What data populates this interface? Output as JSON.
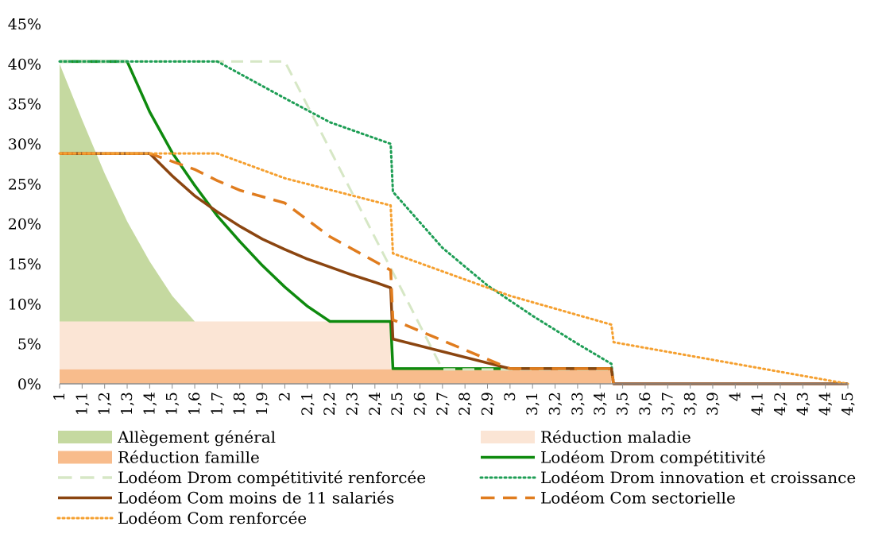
{
  "chart_data": {
    "type": "line",
    "title": "",
    "xlabel": "",
    "ylabel": "",
    "xlim": [
      1,
      4.5
    ],
    "ylim": [
      0,
      45
    ],
    "x_ticks": [
      "1",
      "1,1",
      "1,2",
      "1,3",
      "1,4",
      "1,5",
      "1,6",
      "1,7",
      "1,8",
      "1,9",
      "2",
      "2,1",
      "2,2",
      "2,3",
      "2,4",
      "2,5",
      "2,6",
      "2,7",
      "2,8",
      "2,9",
      "3",
      "3,1",
      "3,2",
      "3,3",
      "3,4",
      "3,5",
      "3,6",
      "3,7",
      "3,8",
      "3,9",
      "4",
      "4,1",
      "4,2",
      "4,3",
      "4,4",
      "4,5"
    ],
    "y_ticks": [
      "0%",
      "5%",
      "10%",
      "15%",
      "20%",
      "25%",
      "30%",
      "35%",
      "40%",
      "45%"
    ],
    "areas": [
      {
        "name": "Allègement général",
        "color": "#c5d9a0",
        "points": [
          [
            1,
            40
          ],
          [
            1.1,
            33
          ],
          [
            1.2,
            26.3
          ],
          [
            1.3,
            20.3
          ],
          [
            1.4,
            15.3
          ],
          [
            1.5,
            11
          ],
          [
            1.6,
            7.8
          ]
        ]
      },
      {
        "name": "Réduction maladie",
        "color": "#fbe5d5",
        "points": [
          [
            1,
            7.8
          ],
          [
            2.47,
            7.8
          ],
          [
            2.47,
            1.9
          ],
          [
            3.45,
            1.9
          ],
          [
            3.45,
            0
          ]
        ]
      },
      {
        "name": "Réduction famille",
        "color": "#f8bc8c",
        "points": [
          [
            1,
            1.8
          ],
          [
            3.45,
            1.8
          ],
          [
            3.45,
            0
          ]
        ]
      }
    ],
    "series": [
      {
        "name": "Lodéom Drom compétitivité",
        "color": "#0e8a0e",
        "dash": "solid",
        "width": 3.5,
        "points": [
          [
            1,
            40.3
          ],
          [
            1.3,
            40.3
          ],
          [
            1.4,
            34
          ],
          [
            1.5,
            28.9
          ],
          [
            1.6,
            24.8
          ],
          [
            1.7,
            21
          ],
          [
            1.8,
            17.8
          ],
          [
            1.9,
            14.8
          ],
          [
            2,
            12.1
          ],
          [
            2.1,
            9.7
          ],
          [
            2.2,
            7.8
          ],
          [
            2.47,
            7.8
          ],
          [
            2.48,
            1.9
          ],
          [
            3.45,
            1.9
          ],
          [
            3.46,
            0
          ]
        ]
      },
      {
        "name": "Lodéom Drom compétitivité renforcée",
        "color": "#d6e7c5",
        "dash": "dashed",
        "width": 3,
        "points": [
          [
            1,
            40.3
          ],
          [
            2,
            40.3
          ],
          [
            2.7,
            1.8
          ],
          [
            3.45,
            1.8
          ],
          [
            3.46,
            0
          ]
        ]
      },
      {
        "name": "Lodéom Drom innovation et croissance",
        "color": "#1e9e55",
        "dash": "dotted",
        "width": 3,
        "points": [
          [
            1,
            40.3
          ],
          [
            1.7,
            40.3
          ],
          [
            2,
            35.7
          ],
          [
            2.2,
            32.7
          ],
          [
            2.47,
            30
          ],
          [
            2.48,
            24
          ],
          [
            2.7,
            17
          ],
          [
            2.9,
            12.3
          ],
          [
            3.1,
            8.5
          ],
          [
            3.3,
            5
          ],
          [
            3.45,
            2.5
          ],
          [
            3.46,
            0
          ]
        ]
      },
      {
        "name": "Lodéom Com moins de 11 salariés",
        "color": "#8b4510",
        "dash": "solid",
        "width": 3.5,
        "points": [
          [
            1,
            28.8
          ],
          [
            1.4,
            28.8
          ],
          [
            1.5,
            26
          ],
          [
            1.6,
            23.5
          ],
          [
            1.7,
            21.5
          ],
          [
            1.8,
            19.7
          ],
          [
            1.9,
            18.1
          ],
          [
            2,
            16.8
          ],
          [
            2.1,
            15.6
          ],
          [
            2.2,
            14.6
          ],
          [
            2.3,
            13.6
          ],
          [
            2.4,
            12.7
          ],
          [
            2.47,
            12
          ],
          [
            2.48,
            5.6
          ],
          [
            3,
            1.9
          ],
          [
            3.45,
            1.9
          ],
          [
            3.46,
            0
          ],
          [
            4.5,
            0
          ]
        ]
      },
      {
        "name": "Lodéom Com sectorielle",
        "color": "#e07c1e",
        "dash": "dashed",
        "width": 3.5,
        "points": [
          [
            1,
            28.8
          ],
          [
            1.4,
            28.8
          ],
          [
            1.6,
            26.8
          ],
          [
            1.7,
            25.4
          ],
          [
            1.8,
            24.2
          ],
          [
            2,
            22.6
          ],
          [
            2.2,
            18.4
          ],
          [
            2.4,
            15.3
          ],
          [
            2.47,
            14.2
          ],
          [
            2.48,
            8
          ],
          [
            3,
            1.9
          ],
          [
            3.45,
            1.9
          ],
          [
            3.46,
            0
          ]
        ]
      },
      {
        "name": "Lodéom Com renforcée",
        "color": "#f5a030",
        "dash": "dotted",
        "width": 3,
        "points": [
          [
            1,
            28.8
          ],
          [
            1.7,
            28.8
          ],
          [
            2,
            25.7
          ],
          [
            2.47,
            22.3
          ],
          [
            2.48,
            16.3
          ],
          [
            3,
            11
          ],
          [
            3.2,
            9.4
          ],
          [
            3.45,
            7.4
          ],
          [
            3.46,
            5.2
          ],
          [
            4.5,
            0
          ]
        ]
      }
    ],
    "legend": {
      "placement": "bottom",
      "entries": [
        {
          "name": "Allègement général",
          "kind": "area",
          "color": "#c5d9a0"
        },
        {
          "name": "Réduction maladie",
          "kind": "area",
          "color": "#fbe5d5"
        },
        {
          "name": "Réduction famille",
          "kind": "area",
          "color": "#f8bc8c"
        },
        {
          "name": "Lodéom Drom compétitivité",
          "kind": "line",
          "color": "#0e8a0e",
          "dash": "solid"
        },
        {
          "name": "Lodéom Drom compétitivité renforcée",
          "kind": "line",
          "color": "#d6e7c5",
          "dash": "dashed"
        },
        {
          "name": "Lodéom Drom innovation et croissance",
          "kind": "line",
          "color": "#1e9e55",
          "dash": "dotted"
        },
        {
          "name": "Lodéom Com moins de 11 salariés",
          "kind": "line",
          "color": "#8b4510",
          "dash": "solid"
        },
        {
          "name": "Lodéom Com sectorielle",
          "kind": "line",
          "color": "#e07c1e",
          "dash": "dashed"
        },
        {
          "name": "Lodéom Com renforcée",
          "kind": "line",
          "color": "#f5a030",
          "dash": "dotted"
        }
      ]
    }
  }
}
